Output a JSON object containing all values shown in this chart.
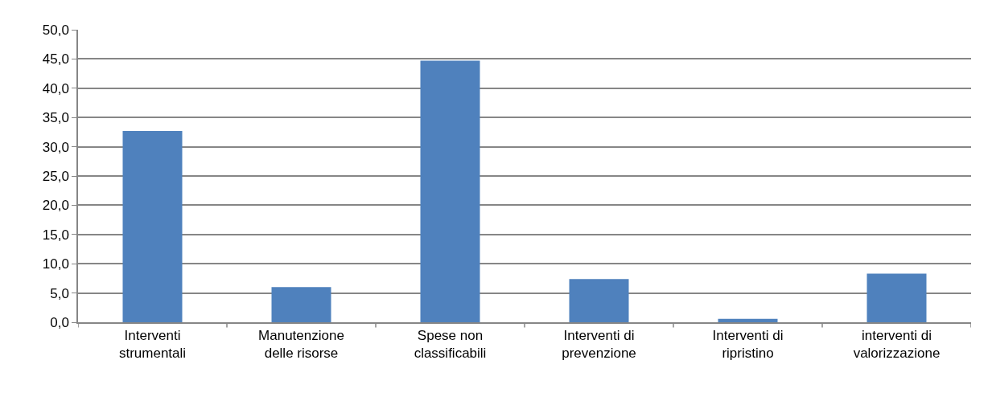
{
  "chart_data": {
    "type": "bar",
    "categories": [
      "Interventi strumentali",
      "Manutenzione delle risorse",
      "Spese non classificabili",
      "Interventi di prevenzione",
      "Interventi di ripristino",
      "interventi di valorizzazione"
    ],
    "values": [
      32.7,
      6.0,
      44.7,
      7.4,
      0.6,
      8.3
    ],
    "color": "#4f81bd",
    "ylim": [
      0,
      50
    ],
    "yticks": [
      {
        "value": 0,
        "label": "0,0"
      },
      {
        "value": 5,
        "label": "5,0"
      },
      {
        "value": 10,
        "label": "10,0"
      },
      {
        "value": 15,
        "label": "15,0"
      },
      {
        "value": 20,
        "label": "20,0"
      },
      {
        "value": 25,
        "label": "25,0"
      },
      {
        "value": 30,
        "label": "30,0"
      },
      {
        "value": 35,
        "label": "35,0"
      },
      {
        "value": 40,
        "label": "40,0"
      },
      {
        "value": 45,
        "label": "45,0"
      },
      {
        "value": 50,
        "label": "50,0"
      }
    ],
    "grid": "y"
  }
}
